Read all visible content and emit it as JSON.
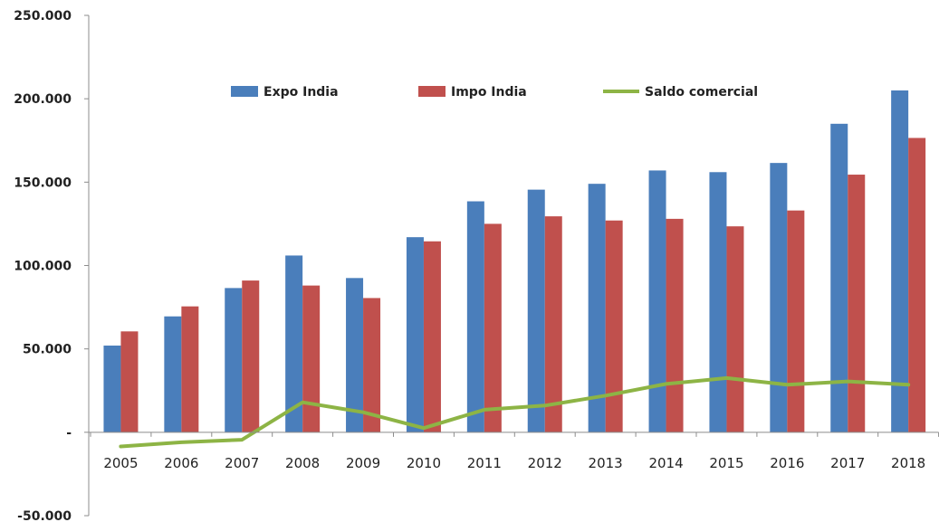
{
  "chart_data": {
    "type": "bar",
    "title": "",
    "xlabel": "",
    "ylabel": "",
    "categories": [
      "2005",
      "2006",
      "2007",
      "2008",
      "2009",
      "2010",
      "2011",
      "2012",
      "2013",
      "2014",
      "2015",
      "2016",
      "2017",
      "2018"
    ],
    "series": [
      {
        "name": "Expo India",
        "type": "bar",
        "color": "#4a7ebb",
        "values": [
          52000,
          69500,
          86500,
          106000,
          92500,
          117000,
          138500,
          145500,
          149000,
          157000,
          156000,
          161500,
          185000,
          205000
        ]
      },
      {
        "name": "Impo India",
        "type": "bar",
        "color": "#c0504d",
        "values": [
          60500,
          75500,
          91000,
          88000,
          80500,
          114500,
          125000,
          129500,
          127000,
          128000,
          123500,
          133000,
          154500,
          176500
        ]
      },
      {
        "name": "Saldo comercial",
        "type": "line",
        "color": "#8db445",
        "values": [
          -8500,
          -6000,
          -4500,
          18000,
          12000,
          2500,
          13500,
          16000,
          22000,
          29000,
          32500,
          28500,
          30500,
          28500
        ]
      }
    ],
    "ylim": [
      -50000,
      250000
    ],
    "yticks": [
      -50000,
      0,
      50000,
      100000,
      150000,
      200000,
      250000
    ],
    "ytick_labels": [
      "-50.000",
      "-",
      "50.000",
      "100.000",
      "150.000",
      "200.000",
      "250.000"
    ],
    "grid": false,
    "legend_position": "top"
  }
}
